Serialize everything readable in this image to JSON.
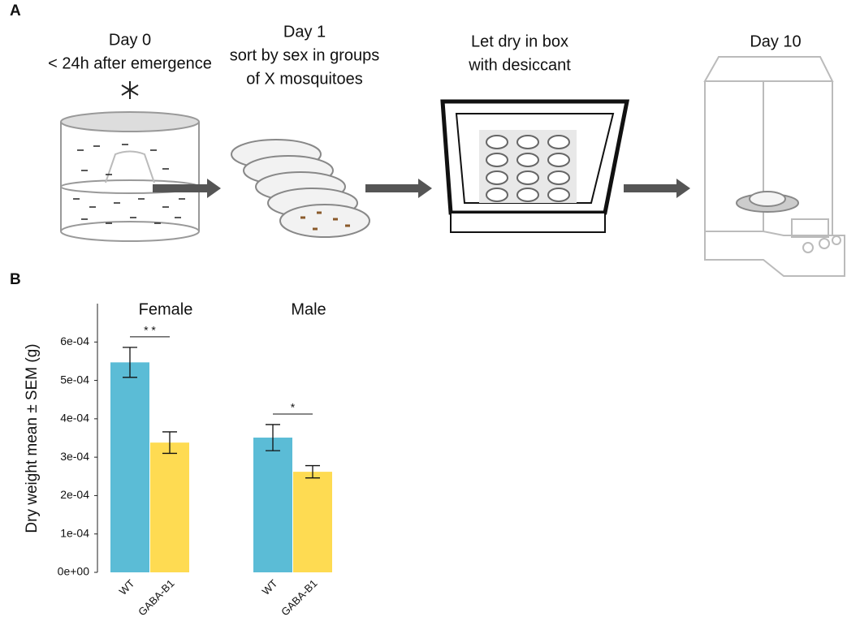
{
  "panel_a": {
    "label": "A",
    "steps": [
      {
        "lines": [
          "Day 0",
          "< 24h after emergence"
        ]
      },
      {
        "lines": [
          "Day 1",
          "sort by sex in groups",
          "of X mosquitoes"
        ]
      },
      {
        "lines": [
          "Let dry in box",
          "with desiccant"
        ]
      },
      {
        "lines": [
          "Day 10"
        ]
      }
    ]
  },
  "chart_data": {
    "type": "bar",
    "label": "B",
    "ylabel": "Dry weight mean ± SEM (g)",
    "ylim": [
      0,
      0.0007
    ],
    "yticks": [
      {
        "value": 0,
        "label": "0e+00"
      },
      {
        "value": 0.0001,
        "label": "1e-04"
      },
      {
        "value": 0.0002,
        "label": "2e-04"
      },
      {
        "value": 0.0003,
        "label": "3e-04"
      },
      {
        "value": 0.0004,
        "label": "4e-04"
      },
      {
        "value": 0.0005,
        "label": "5e-04"
      },
      {
        "value": 0.0006,
        "label": "6e-04"
      }
    ],
    "colors": [
      "#5bbcd6",
      "#fedb52"
    ],
    "groups": [
      {
        "title": "Female",
        "categories": [
          "WT",
          "GABA-B1"
        ],
        "values": [
          0.000547,
          0.000338
        ],
        "errors": [
          3.9e-05,
          2.8e-05
        ],
        "significance": "* *"
      },
      {
        "title": "Male",
        "categories": [
          "WT",
          "GABA-B1"
        ],
        "values": [
          0.000351,
          0.000262
        ],
        "errors": [
          3.4e-05,
          1.6e-05
        ],
        "significance": "*"
      }
    ]
  }
}
